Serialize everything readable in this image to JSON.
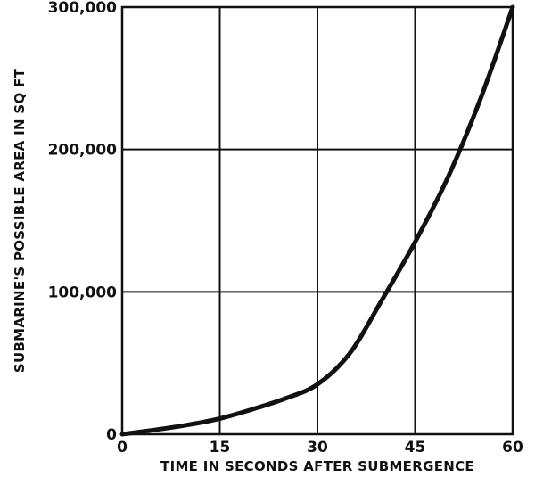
{
  "chart_data": {
    "type": "line",
    "title": "",
    "xlabel": "TIME IN SECONDS AFTER SUBMERGENCE",
    "ylabel": "SUBMARINE'S POSSIBLE AREA IN SQ FT",
    "xlim": [
      0,
      60
    ],
    "ylim": [
      0,
      300000
    ],
    "xticks": [
      0,
      15,
      30,
      45,
      60
    ],
    "xtick_labels": [
      "0",
      "15",
      "30",
      "45",
      "60"
    ],
    "yticks": [
      0,
      100000,
      200000,
      300000
    ],
    "ytick_labels": [
      "0",
      "100,000",
      "200,000",
      "300,000"
    ],
    "grid": true,
    "series": [
      {
        "x": [
          0,
          5,
          10,
          15,
          20,
          25,
          30,
          35,
          40,
          45,
          50,
          55,
          60
        ],
        "y": [
          0,
          3000,
          6500,
          11000,
          17500,
          25000,
          35000,
          57000,
          95000,
          135000,
          180000,
          235000,
          300000
        ]
      }
    ]
  }
}
